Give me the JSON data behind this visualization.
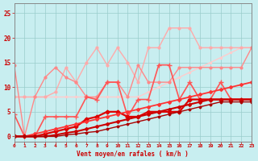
{
  "xlabel": "Vent moyen/en rafales ( km/h )",
  "xlim": [
    0,
    23
  ],
  "ylim": [
    -1,
    27
  ],
  "yticks": [
    0,
    5,
    10,
    15,
    20,
    25
  ],
  "xticks": [
    0,
    1,
    2,
    3,
    4,
    5,
    6,
    7,
    8,
    9,
    10,
    11,
    12,
    13,
    14,
    15,
    16,
    17,
    18,
    19,
    20,
    21,
    22,
    23
  ],
  "bg_color": "#c8eef0",
  "grid_color": "#99cccc",
  "lines": [
    {
      "x": [
        0,
        1,
        2,
        3,
        4,
        5,
        6,
        7,
        8,
        9,
        10,
        11,
        12,
        13,
        14,
        15,
        16,
        17,
        18,
        19,
        20,
        21,
        22,
        23
      ],
      "y": [
        8,
        8,
        8,
        8,
        8,
        8,
        8,
        8,
        8,
        8,
        8,
        8,
        8,
        9,
        10,
        11,
        12,
        13,
        14,
        15,
        16,
        17,
        18,
        18
      ],
      "color": "#ffcccc",
      "lw": 1.0,
      "marker": "o",
      "ms": 1.5
    },
    {
      "x": [
        0,
        1,
        2,
        3,
        4,
        5,
        6,
        7,
        8,
        9,
        10,
        11,
        12,
        13,
        14,
        15,
        16,
        17,
        18,
        19,
        20,
        21,
        22,
        23
      ],
      "y": [
        8,
        8,
        8,
        8,
        9,
        14,
        11,
        15,
        18,
        14.5,
        18,
        15,
        11,
        18,
        18,
        22,
        22,
        22,
        18,
        18,
        18,
        18,
        18,
        18
      ],
      "color": "#ffaaaa",
      "lw": 1.0,
      "marker": "o",
      "ms": 2.0
    },
    {
      "x": [
        0,
        1,
        2,
        3,
        4,
        5,
        6,
        7,
        8,
        9,
        10,
        11,
        12,
        13,
        14,
        15,
        16,
        17,
        18,
        19,
        20,
        21,
        22,
        23
      ],
      "y": [
        14.5,
        0,
        8,
        12,
        14,
        12,
        11,
        8,
        8,
        11,
        11,
        8,
        14.5,
        11,
        11,
        11,
        14,
        14,
        14,
        14,
        14,
        14,
        14,
        18
      ],
      "color": "#ff8888",
      "lw": 1.0,
      "marker": "o",
      "ms": 2.0
    },
    {
      "x": [
        0,
        1,
        2,
        3,
        4,
        5,
        6,
        7,
        8,
        9,
        10,
        11,
        12,
        13,
        14,
        15,
        16,
        17,
        18,
        19,
        20,
        21,
        22,
        23
      ],
      "y": [
        4.5,
        0,
        0,
        4,
        4,
        4,
        4,
        8,
        7.5,
        11,
        11,
        4,
        7.5,
        7.5,
        14.5,
        14.5,
        7.5,
        11,
        7.5,
        7.5,
        11,
        7.5,
        7.5,
        7.5
      ],
      "color": "#ff5555",
      "lw": 1.2,
      "marker": "+",
      "ms": 4
    },
    {
      "x": [
        0,
        1,
        2,
        3,
        4,
        5,
        6,
        7,
        8,
        9,
        10,
        11,
        12,
        13,
        14,
        15,
        16,
        17,
        18,
        19,
        20,
        21,
        22,
        23
      ],
      "y": [
        0,
        0,
        0,
        0.5,
        1,
        1.5,
        2,
        3.5,
        4,
        5,
        5,
        4,
        4,
        5,
        5,
        5,
        5,
        7.5,
        7.5,
        7.5,
        7.5,
        7.5,
        7.5,
        7.5
      ],
      "color": "#dd0000",
      "lw": 1.6,
      "marker": "D",
      "ms": 2.5
    },
    {
      "x": [
        0,
        1,
        2,
        3,
        4,
        5,
        6,
        7,
        8,
        9,
        10,
        11,
        12,
        13,
        14,
        15,
        16,
        17,
        18,
        19,
        20,
        21,
        22,
        23
      ],
      "y": [
        0,
        0,
        0.5,
        1,
        1.5,
        2,
        2.5,
        3,
        3.5,
        4,
        4.5,
        5,
        5.5,
        6,
        6.5,
        7,
        7.5,
        8,
        8.5,
        9,
        9.5,
        10,
        10.5,
        11
      ],
      "color": "#ff3333",
      "lw": 1.3,
      "marker": "D",
      "ms": 2.0
    },
    {
      "x": [
        0,
        1,
        2,
        3,
        4,
        5,
        6,
        7,
        8,
        9,
        10,
        11,
        12,
        13,
        14,
        15,
        16,
        17,
        18,
        19,
        20,
        21,
        22,
        23
      ],
      "y": [
        0,
        0,
        0,
        0,
        0.3,
        0.7,
        1,
        1.5,
        2,
        2.5,
        3,
        3.5,
        4,
        4.5,
        5,
        5.5,
        6,
        6.5,
        7,
        7.5,
        7.5,
        7.5,
        7.5,
        7.5
      ],
      "color": "#cc0000",
      "lw": 1.5,
      "marker": "D",
      "ms": 2.0
    },
    {
      "x": [
        0,
        1,
        2,
        3,
        4,
        5,
        6,
        7,
        8,
        9,
        10,
        11,
        12,
        13,
        14,
        15,
        16,
        17,
        18,
        19,
        20,
        21,
        22,
        23
      ],
      "y": [
        0,
        0,
        0,
        0,
        0,
        0.3,
        0.5,
        0.8,
        1,
        1.5,
        2,
        2.5,
        3,
        3.5,
        4,
        4.5,
        5,
        5.5,
        6,
        6.5,
        7,
        7,
        7,
        7
      ],
      "color": "#aa0000",
      "lw": 1.0,
      "marker": "D",
      "ms": 1.5
    }
  ]
}
